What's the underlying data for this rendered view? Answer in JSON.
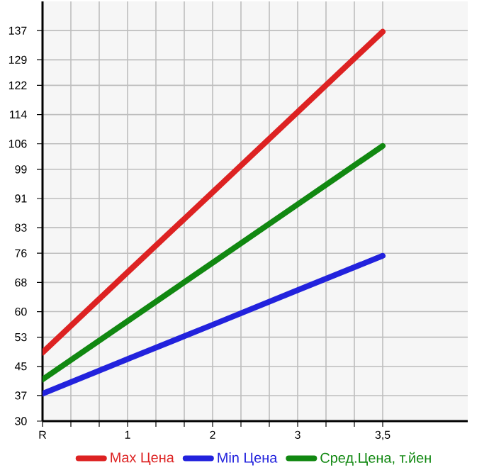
{
  "chart_data": {
    "type": "line",
    "categories": [
      "R",
      "1",
      "2",
      "3",
      "3,5"
    ],
    "series": [
      {
        "name": "Max Цена",
        "color": "#dd2222",
        "values": [
          48.8,
          70.8,
          92.7,
          114.7,
          136.7
        ]
      },
      {
        "name": "Min Цена",
        "color": "#2222dd",
        "values": [
          37.5,
          47.0,
          56.4,
          65.9,
          75.3
        ]
      },
      {
        "name": "Сред.Цена, т.йен",
        "color": "#118811",
        "values": [
          41.4,
          57.4,
          73.4,
          89.4,
          105.4
        ]
      }
    ],
    "ylim": [
      30,
      145
    ],
    "yticks": [
      30,
      37,
      45,
      53,
      60,
      68,
      76,
      83,
      91,
      99,
      106,
      114,
      122,
      129,
      137
    ],
    "grid": true,
    "legend": "bottom",
    "marker": "none",
    "line_style": "solid"
  }
}
